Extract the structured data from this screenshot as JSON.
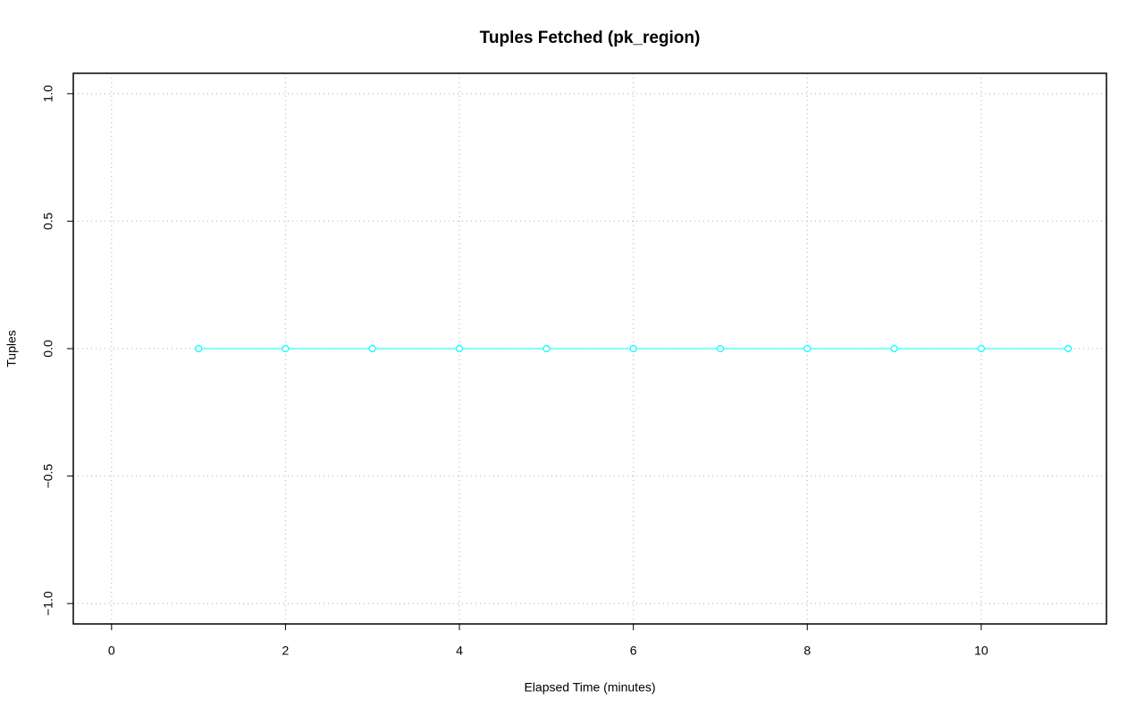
{
  "chart_data": {
    "type": "line",
    "title": "Tuples Fetched (pk_region)",
    "x_label": "Elapsed Time (minutes)",
    "y_label": "Tuples",
    "x": [
      1,
      2,
      3,
      4,
      5,
      6,
      7,
      8,
      9,
      10,
      11
    ],
    "values": [
      0,
      0,
      0,
      0,
      0,
      0,
      0,
      0,
      0,
      0,
      0
    ],
    "color": "#00ffff",
    "xlim": [
      -0.44,
      11.44
    ],
    "ylim": [
      -1.08,
      1.08
    ],
    "xticks": [
      0,
      2,
      4,
      6,
      8,
      10
    ],
    "yticks": [
      {
        "value": -1,
        "label": "−1.0"
      },
      {
        "value": -0.5,
        "label": "−0.5"
      },
      {
        "value": 0,
        "label": "0.0"
      },
      0.5,
      {
        "value": 1,
        "label": "1.0"
      }
    ],
    "grid": true
  }
}
